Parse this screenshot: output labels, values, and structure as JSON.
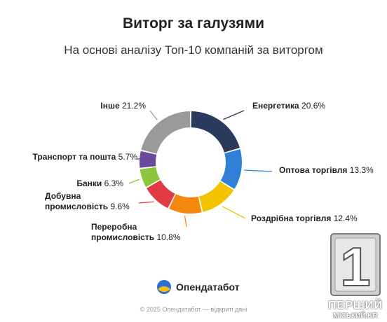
{
  "title": "Виторг за галузями",
  "subtitle": "На основі аналізу Топ-10 компаній за виторгом",
  "brand": {
    "name": "Опендатабот",
    "logo_icon": "opendatabot-logo-icon"
  },
  "footer": "© 2025 Опендатабот — відкриті дані",
  "watermark": {
    "digit": "1",
    "line1": "ПЕРШИЙ",
    "line2": "МІСЬКИЙ.KR"
  },
  "chart_data": {
    "type": "pie",
    "variant": "donut",
    "title": "Виторг за галузями",
    "subtitle": "На основі аналізу Топ-10 компаній за виторгом",
    "unit": "%",
    "slices": [
      {
        "label": "Енергетика",
        "value": 20.6,
        "text": "Енергетика 20.6%",
        "color": "#2a3a5c"
      },
      {
        "label": "Оптова торгівля",
        "value": 13.3,
        "text": "Оптова торгівля 13.3%",
        "color": "#2f80d6"
      },
      {
        "label": "Роздрібна торгівля",
        "value": 12.4,
        "text": "Роздрібна торгівля 12.4%",
        "color": "#f5c200"
      },
      {
        "label": "Переробна промисловість",
        "value": 10.8,
        "lines": [
          "Переробна",
          "промисловість 10.8%"
        ],
        "color": "#f5870f"
      },
      {
        "label": "Добувна промисловість",
        "value": 9.6,
        "lines": [
          "Добувна",
          "промисловість 9.6%"
        ],
        "color": "#e23a45"
      },
      {
        "label": "Банки",
        "value": 6.3,
        "text": "Банки 6.3%",
        "color": "#8cc63f"
      },
      {
        "label": "Транспорт та пошта",
        "value": 5.7,
        "text": "Транспорт та пошта 5.7%",
        "color": "#6a4a9c"
      },
      {
        "label": "Інше",
        "value": 21.2,
        "text": "Інше 21.2%",
        "color": "#9a9a9a"
      }
    ]
  }
}
